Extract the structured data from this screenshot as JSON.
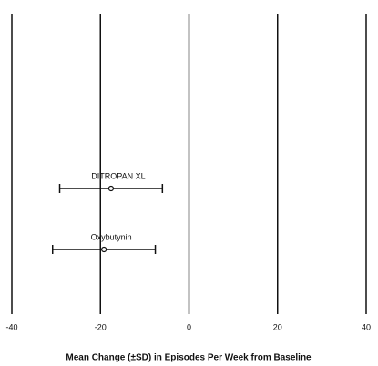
{
  "chart_data": {
    "type": "errorbar",
    "x_label": "Mean Change (±SD) in Episodes Per Week from Baseline",
    "categories": [
      "DITROPAN XL",
      "Oxybutynin"
    ],
    "values": [
      -17.6,
      -19.2
    ],
    "errors": [
      11.6,
      11.6
    ],
    "color": "#111111",
    "xlim": [
      -40,
      40
    ],
    "xticks": [
      -40,
      -20,
      0,
      20,
      40
    ],
    "grid": true
  }
}
